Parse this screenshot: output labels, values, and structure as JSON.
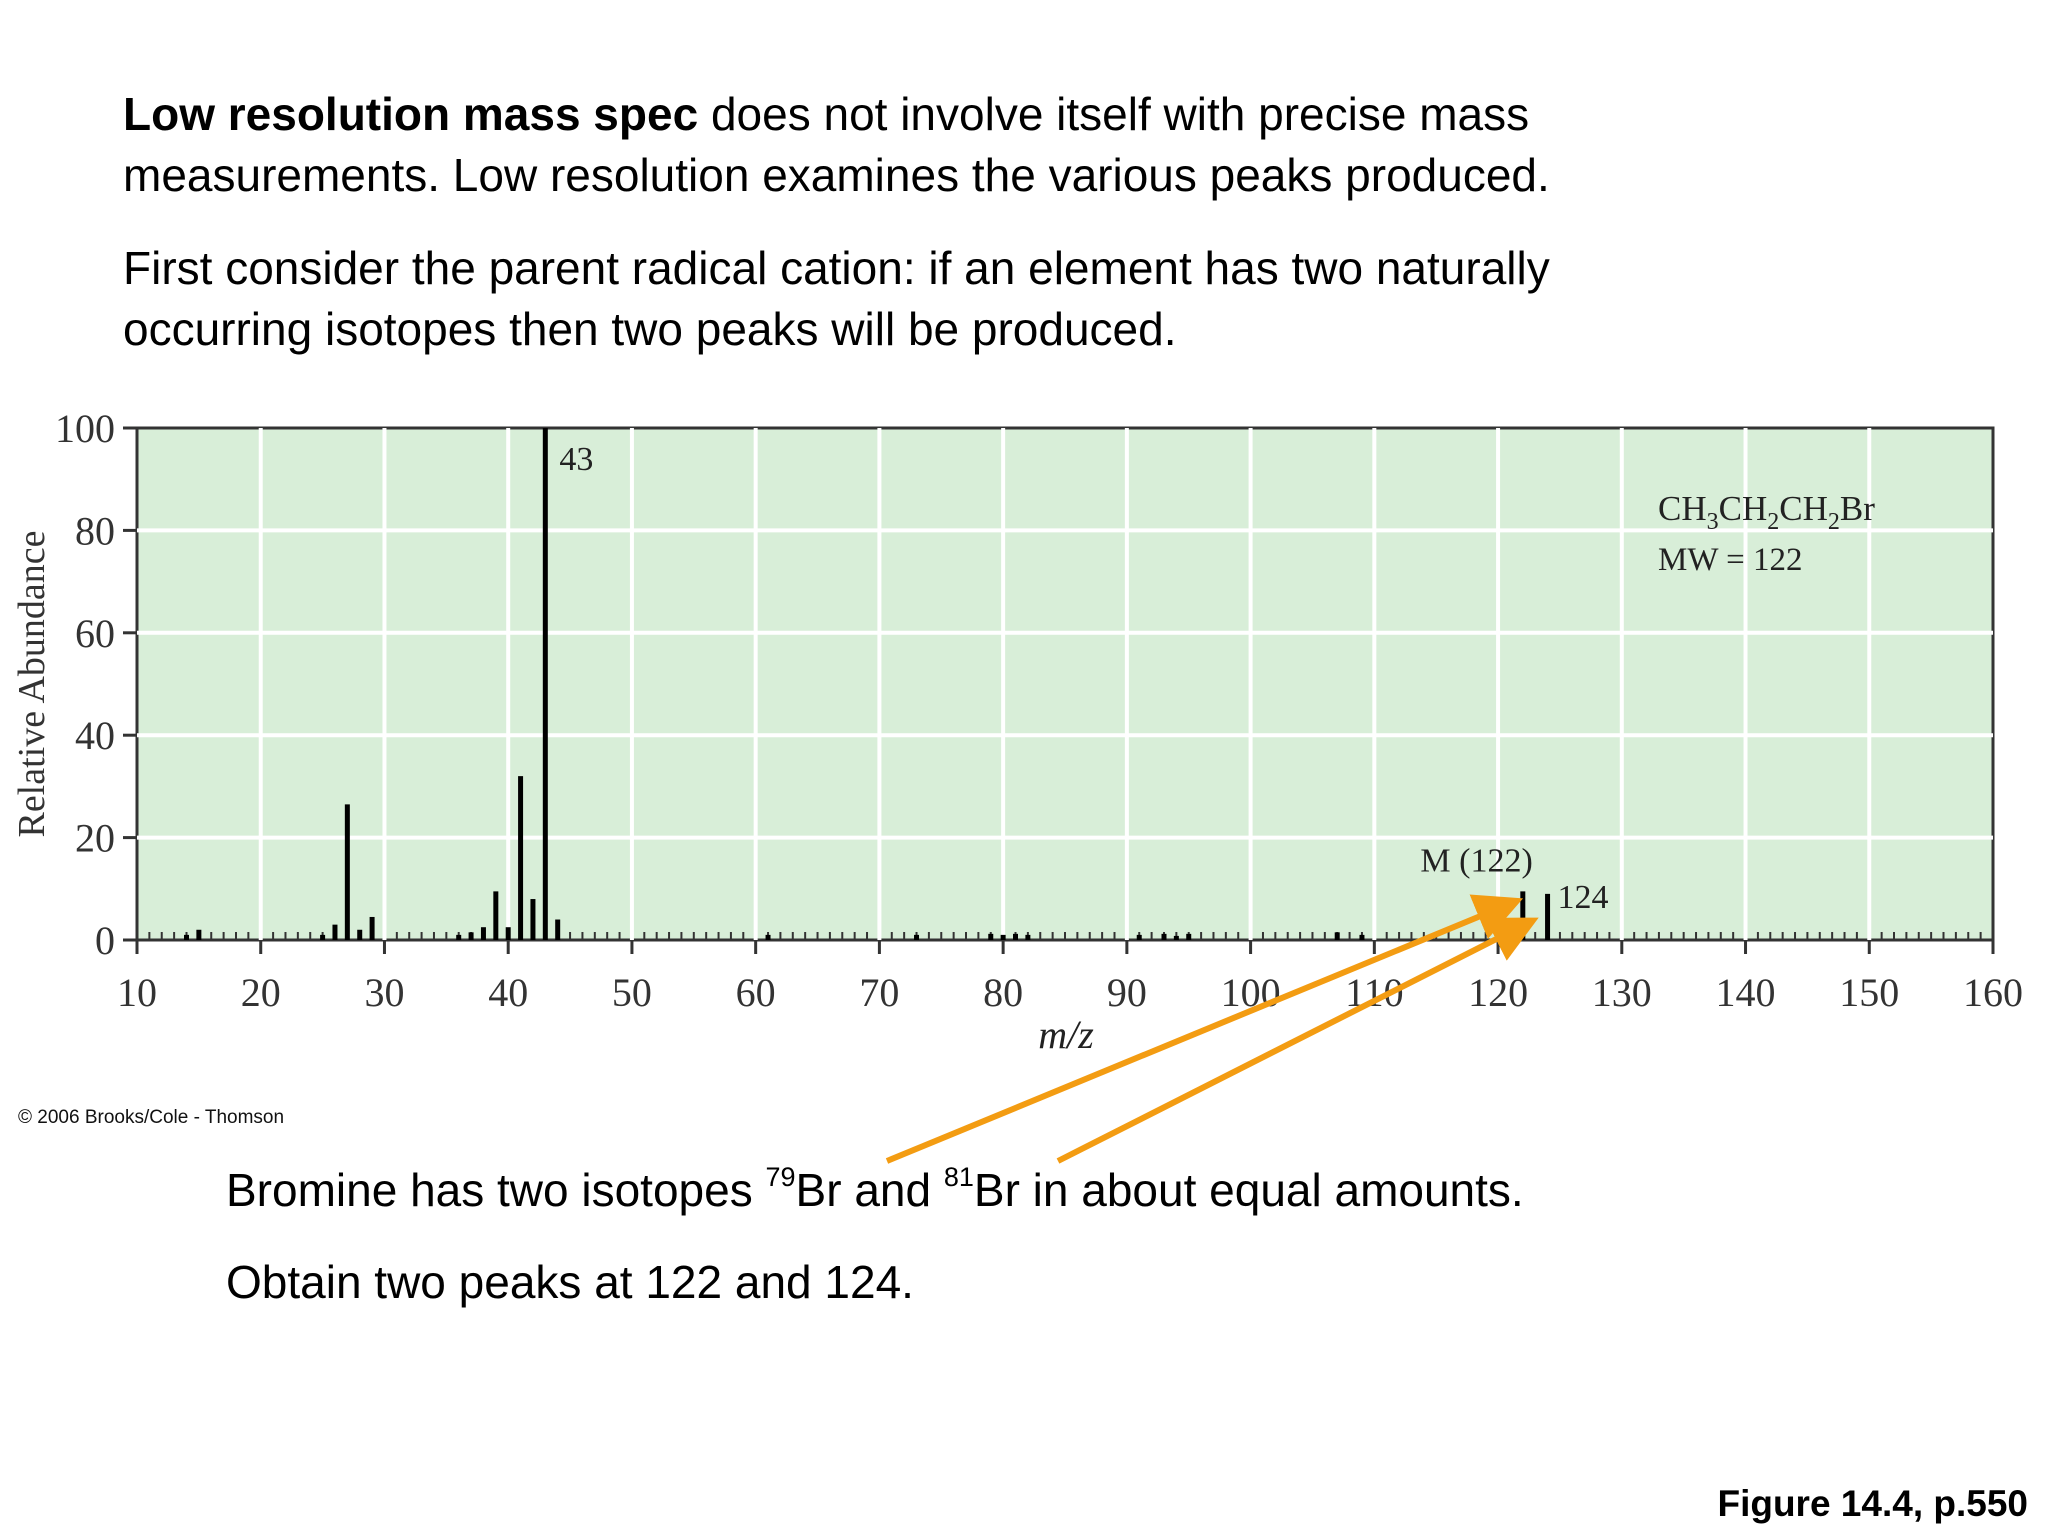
{
  "intro": {
    "p1_bold": "Low resolution mass spec",
    "p1_rest": " does not involve itself with precise mass",
    "p1_line2": "measurements.  Low resolution examines the various peaks produced.",
    "p2_line1": "First consider the parent radical cation:  if an element has two naturally",
    "p2_line2": "occurring isotopes then two peaks will be produced."
  },
  "chart_data": {
    "type": "bar",
    "xlabel": "m/z",
    "ylabel": "Relative Abundance",
    "xlim": [
      10,
      160
    ],
    "ylim": [
      0,
      100
    ],
    "x_ticks": [
      "10",
      "20",
      "30",
      "40",
      "50",
      "60",
      "70",
      "80",
      "90",
      "100",
      "110",
      "120",
      "130",
      "140",
      "150",
      "160"
    ],
    "y_ticks": [
      "0",
      "20",
      "40",
      "60",
      "80",
      "100"
    ],
    "grid": true,
    "background": "#d8eed8",
    "bar_color": "#000000",
    "peaks": [
      {
        "x": 14,
        "y": 1
      },
      {
        "x": 15,
        "y": 2
      },
      {
        "x": 25,
        "y": 1
      },
      {
        "x": 26,
        "y": 3
      },
      {
        "x": 27,
        "y": 26.5
      },
      {
        "x": 28,
        "y": 2
      },
      {
        "x": 29,
        "y": 4.5
      },
      {
        "x": 36,
        "y": 1
      },
      {
        "x": 37,
        "y": 1.5
      },
      {
        "x": 38,
        "y": 2.5
      },
      {
        "x": 39,
        "y": 9.5
      },
      {
        "x": 40,
        "y": 2.5
      },
      {
        "x": 41,
        "y": 32
      },
      {
        "x": 42,
        "y": 8
      },
      {
        "x": 43,
        "y": 100
      },
      {
        "x": 44,
        "y": 4
      },
      {
        "x": 61,
        "y": 1
      },
      {
        "x": 73,
        "y": 1
      },
      {
        "x": 79,
        "y": 1.2
      },
      {
        "x": 80,
        "y": 1
      },
      {
        "x": 81,
        "y": 1.2
      },
      {
        "x": 82,
        "y": 1
      },
      {
        "x": 91,
        "y": 1
      },
      {
        "x": 93,
        "y": 1.2
      },
      {
        "x": 94,
        "y": 0.8
      },
      {
        "x": 95,
        "y": 1.2
      },
      {
        "x": 107,
        "y": 1.5
      },
      {
        "x": 109,
        "y": 1
      },
      {
        "x": 122,
        "y": 9.5
      },
      {
        "x": 124,
        "y": 9
      }
    ],
    "annotations": [
      {
        "x": 43,
        "text": "43"
      },
      {
        "x": 122,
        "text": "M (122)"
      },
      {
        "x": 124,
        "text": "124"
      }
    ],
    "formula": {
      "main": [
        "CH",
        "3",
        "CH",
        "2",
        "CH",
        "2",
        "Br"
      ],
      "mw": "MW = 122"
    },
    "arrow_color": "#f39c12"
  },
  "copyright": "© 2006 Brooks/Cole - Thomson",
  "bottom": {
    "line1_a": "Bromine has two isotopes ",
    "sup1": "79",
    "line1_b": "Br and ",
    "sup2": "81",
    "line1_c": "Br in about equal amounts.",
    "line2": "Obtain two peaks at 122 and 124."
  },
  "figure_ref": "Figure 14.4, p.550"
}
